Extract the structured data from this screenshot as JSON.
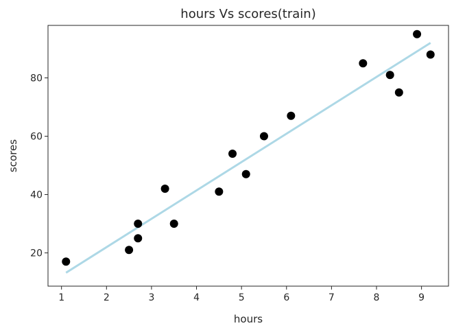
{
  "chart_data": {
    "type": "scatter",
    "title": "hours Vs scores(train)",
    "xlabel": "hours",
    "ylabel": "scores",
    "xlim": [
      0.7,
      9.6
    ],
    "ylim": [
      8.6,
      98
    ],
    "xticks": [
      1,
      2,
      3,
      4,
      5,
      6,
      7,
      8,
      9
    ],
    "yticks": [
      20,
      40,
      60,
      80
    ],
    "grid": false,
    "series": [
      {
        "type": "scatter",
        "color": "#000000",
        "points": [
          {
            "x": 1.1,
            "y": 17
          },
          {
            "x": 2.5,
            "y": 21
          },
          {
            "x": 2.7,
            "y": 25
          },
          {
            "x": 2.7,
            "y": 30
          },
          {
            "x": 3.3,
            "y": 42
          },
          {
            "x": 3.5,
            "y": 30
          },
          {
            "x": 4.5,
            "y": 41
          },
          {
            "x": 4.8,
            "y": 54
          },
          {
            "x": 5.1,
            "y": 47
          },
          {
            "x": 5.5,
            "y": 60
          },
          {
            "x": 6.1,
            "y": 67
          },
          {
            "x": 7.7,
            "y": 85
          },
          {
            "x": 8.3,
            "y": 81
          },
          {
            "x": 8.5,
            "y": 75
          },
          {
            "x": 8.9,
            "y": 95
          },
          {
            "x": 9.2,
            "y": 88
          }
        ]
      },
      {
        "type": "line",
        "color": "#add8e6",
        "points": [
          {
            "x": 1.1,
            "y": 13.2
          },
          {
            "x": 9.2,
            "y": 92.0
          }
        ]
      }
    ]
  }
}
